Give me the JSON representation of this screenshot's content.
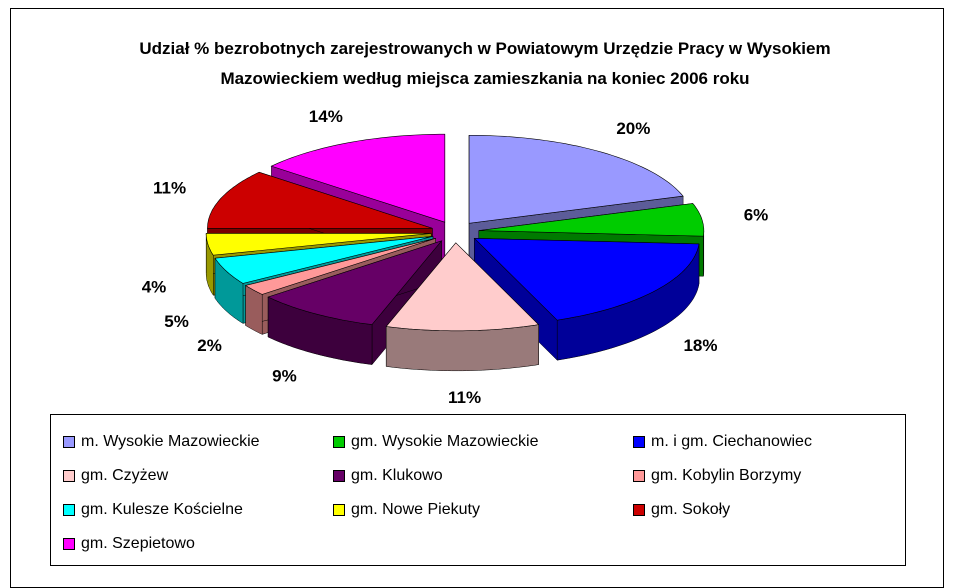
{
  "chart_data": {
    "type": "pie3d",
    "title": "Udział % bezrobotnych zarejestrowanych w Powiatowym Urzędzie Pracy w Wysokiem Mazowieckiem według miejsca zamieszkania na koniec 2006 roku",
    "categories": [
      "m. Wysokie Mazowieckie",
      "gm. Wysokie Mazowieckie",
      "m. i gm. Ciechanowiec",
      "gm. Czyżew",
      "gm. Klukowo",
      "gm. Kobylin Borzymy",
      "gm. Kulesze Kościelne",
      "gm. Nowe Piekuty",
      "gm. Sokoły",
      "gm. Szepietowo"
    ],
    "values": [
      20,
      6,
      18,
      11,
      9,
      2,
      5,
      4,
      11,
      14
    ],
    "value_labels": [
      "20%",
      "6%",
      "18%",
      "11%",
      "9%",
      "2%",
      "5%",
      "4%",
      "11%",
      "14%"
    ],
    "colors": [
      "#9999ff",
      "#00cc00",
      "#0000ff",
      "#ffcccc",
      "#660066",
      "#ff9999",
      "#00ffff",
      "#ffff00",
      "#cc0000",
      "#ff00ff"
    ],
    "legend": "bottom"
  }
}
